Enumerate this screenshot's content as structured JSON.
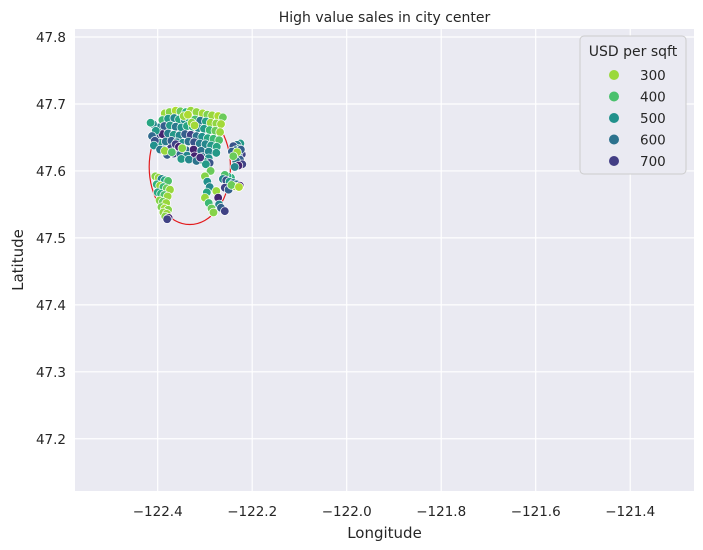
{
  "chart_data": {
    "type": "scatter",
    "title": "High value sales in city center",
    "xlabel": "Longitude",
    "ylabel": "Latitude",
    "xlim": [
      -122.575,
      -121.265
    ],
    "ylim": [
      47.122,
      47.812
    ],
    "xticks": [
      -122.4,
      -122.2,
      -122.0,
      -121.8,
      -121.6,
      -121.4
    ],
    "xtick_labels": [
      "−122.4",
      "−122.2",
      "−122.0",
      "−121.8",
      "−121.6",
      "−121.4"
    ],
    "yticks": [
      47.2,
      47.3,
      47.4,
      47.5,
      47.6,
      47.7,
      47.8
    ],
    "ytick_labels": [
      "47.2",
      "47.3",
      "47.4",
      "47.5",
      "47.6",
      "47.7",
      "47.8"
    ],
    "grid": true,
    "legend": {
      "title": "USD per sqft",
      "position": "top-right",
      "entries": [
        {
          "label": "300",
          "color": "#9bd93c"
        },
        {
          "label": "400",
          "color": "#4ac16d"
        },
        {
          "label": "500",
          "color": "#21918c"
        },
        {
          "label": "600",
          "color": "#2c728e"
        },
        {
          "label": "700",
          "color": "#433e85"
        }
      ]
    },
    "colormap": {
      "min": 250,
      "max": 750,
      "colors": [
        "#c8e020",
        "#7ad151",
        "#2db27d",
        "#21918c",
        "#31688e",
        "#443983",
        "#440154"
      ]
    },
    "circle": {
      "center": [
        -122.332,
        47.606
      ],
      "radius_deg": 0.086,
      "color": "#e31a1c"
    },
    "points": {
      "x": [
        -122.385,
        -122.375,
        -122.362,
        -122.352,
        -122.34,
        -122.33,
        -122.318,
        -122.305,
        -122.295,
        -122.285,
        -122.272,
        -122.262,
        -122.39,
        -122.378,
        -122.365,
        -122.355,
        -122.343,
        -122.333,
        -122.321,
        -122.31,
        -122.298,
        -122.288,
        -122.276,
        -122.266,
        -122.398,
        -122.386,
        -122.374,
        -122.362,
        -122.35,
        -122.338,
        -122.326,
        -122.314,
        -122.302,
        -122.29,
        -122.278,
        -122.268,
        -122.402,
        -122.39,
        -122.378,
        -122.366,
        -122.354,
        -122.342,
        -122.33,
        -122.318,
        -122.306,
        -122.294,
        -122.282,
        -122.27,
        -122.395,
        -122.383,
        -122.371,
        -122.359,
        -122.347,
        -122.335,
        -122.323,
        -122.311,
        -122.299,
        -122.287,
        -122.275,
        -122.388,
        -122.372,
        -122.356,
        -122.34,
        -122.324,
        -122.308,
        -122.292,
        -122.276,
        -122.38,
        -122.366,
        -122.352,
        -122.338,
        -122.322,
        -122.306,
        -122.292,
        -122.35,
        -122.334,
        -122.318,
        -122.302,
        -122.29,
        -122.31,
        -122.298,
        -122.288,
        -122.3,
        -122.295,
        -122.29,
        -122.296,
        -122.3,
        -122.292,
        -122.286,
        -122.282,
        -122.276,
        -122.272,
        -122.27,
        -122.266,
        -122.258,
        -122.225,
        -122.232,
        -122.24,
        -122.228,
        -122.235,
        -122.243,
        -122.222,
        -122.23,
        -122.238,
        -122.226,
        -122.234,
        -122.221,
        -122.229,
        -122.237,
        -122.224,
        -122.232,
        -122.24,
        -122.245,
        -122.252,
        -122.258,
        -122.262,
        -122.255,
        -122.248,
        -122.24,
        -122.233,
        -122.226,
        -122.258,
        -122.25,
        -122.236,
        -122.244,
        -122.228,
        -122.405,
        -122.398,
        -122.392,
        -122.385,
        -122.378,
        -122.402,
        -122.395,
        -122.388,
        -122.381,
        -122.374,
        -122.4,
        -122.393,
        -122.386,
        -122.379,
        -122.396,
        -122.389,
        -122.382,
        -122.392,
        -122.385,
        -122.378,
        -122.388,
        -122.381,
        -122.384,
        -122.377,
        -122.38,
        -122.41,
        -122.404,
        -122.412,
        -122.406,
        -122.415,
        -122.408,
        -122.395,
        -122.385,
        -122.37,
        -122.362,
        -122.355,
        -122.348,
        -122.345,
        -122.336,
        -122.328,
        -122.322
      ],
      "y": [
        47.686,
        47.688,
        47.69,
        47.689,
        47.688,
        47.69,
        47.688,
        47.686,
        47.684,
        47.683,
        47.682,
        47.68,
        47.676,
        47.678,
        47.679,
        47.677,
        47.676,
        47.678,
        47.677,
        47.675,
        47.674,
        47.672,
        47.671,
        47.67,
        47.665,
        47.667,
        47.668,
        47.666,
        47.665,
        47.667,
        47.666,
        47.664,
        47.663,
        47.661,
        47.66,
        47.658,
        47.653,
        47.655,
        47.656,
        47.654,
        47.653,
        47.655,
        47.654,
        47.652,
        47.651,
        47.649,
        47.648,
        47.646,
        47.642,
        47.644,
        47.645,
        47.643,
        47.642,
        47.644,
        47.643,
        47.641,
        47.64,
        47.638,
        47.636,
        47.632,
        47.634,
        47.633,
        47.631,
        47.632,
        47.63,
        47.629,
        47.627,
        47.624,
        47.626,
        47.625,
        47.623,
        47.622,
        47.621,
        47.619,
        47.618,
        47.617,
        47.615,
        47.614,
        47.612,
        47.62,
        47.61,
        47.6,
        47.592,
        47.584,
        47.576,
        47.568,
        47.56,
        47.552,
        47.544,
        47.538,
        47.57,
        47.56,
        47.55,
        47.545,
        47.54,
        47.641,
        47.639,
        47.637,
        47.633,
        47.631,
        47.629,
        47.625,
        47.623,
        47.621,
        47.617,
        47.615,
        47.61,
        47.608,
        47.606,
        47.632,
        47.628,
        47.622,
        47.59,
        47.592,
        47.594,
        47.588,
        47.586,
        47.584,
        47.582,
        47.58,
        47.578,
        47.575,
        47.572,
        47.577,
        47.579,
        47.576,
        47.592,
        47.59,
        47.588,
        47.586,
        47.585,
        47.58,
        47.578,
        47.576,
        47.574,
        47.572,
        47.568,
        47.566,
        47.564,
        47.562,
        47.556,
        47.554,
        47.552,
        47.546,
        47.544,
        47.542,
        47.538,
        47.536,
        47.532,
        47.53,
        47.528,
        47.67,
        47.66,
        47.652,
        47.645,
        47.672,
        47.638,
        47.632,
        47.63,
        47.628,
        47.64,
        47.636,
        47.634,
        47.682,
        47.684,
        47.672,
        47.668
      ],
      "values": [
        300,
        320,
        280,
        350,
        420,
        300,
        310,
        290,
        330,
        300,
        280,
        350,
        400,
        480,
        520,
        450,
        500,
        420,
        380,
        550,
        460,
        300,
        310,
        290,
        520,
        600,
        480,
        550,
        500,
        450,
        420,
        520,
        480,
        400,
        350,
        300,
        620,
        700,
        540,
        480,
        520,
        600,
        650,
        560,
        500,
        450,
        400,
        380,
        480,
        550,
        600,
        520,
        500,
        560,
        620,
        540,
        520,
        480,
        450,
        550,
        650,
        620,
        580,
        700,
        560,
        520,
        480,
        600,
        650,
        580,
        520,
        700,
        550,
        500,
        480,
        520,
        560,
        450,
        620,
        680,
        480,
        350,
        320,
        500,
        520,
        450,
        300,
        400,
        350,
        320,
        300,
        700,
        520,
        600,
        650,
        480,
        550,
        620,
        500,
        560,
        600,
        650,
        520,
        580,
        600,
        550,
        650,
        700,
        520,
        600,
        300,
        350,
        420,
        450,
        380,
        520,
        620,
        480,
        550,
        580,
        700,
        650,
        600,
        300,
        350,
        280,
        320,
        300,
        520,
        450,
        380,
        420,
        300,
        400,
        350,
        300,
        450,
        420,
        380,
        300,
        320,
        350,
        300,
        330,
        290,
        320,
        310,
        300,
        320,
        700,
        650,
        520,
        480,
        580,
        620,
        450,
        500,
        550,
        300,
        380,
        650,
        700,
        320,
        300,
        280,
        310,
        290
      ]
    }
  }
}
